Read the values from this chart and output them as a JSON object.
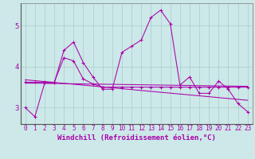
{
  "xlabel": "Windchill (Refroidissement éolien,°C)",
  "background_color": "#cce8e8",
  "grid_color": "#aacccc",
  "line_color": "#aa00aa",
  "xlim": [
    -0.5,
    23.5
  ],
  "ylim": [
    2.6,
    5.55
  ],
  "yticks": [
    3,
    4,
    5
  ],
  "xticks": [
    0,
    1,
    2,
    3,
    4,
    5,
    6,
    7,
    8,
    9,
    10,
    11,
    12,
    13,
    14,
    15,
    16,
    17,
    18,
    19,
    20,
    21,
    22,
    23
  ],
  "line1_x": [
    0,
    1,
    2,
    3,
    4,
    5,
    6,
    7,
    8,
    9,
    10,
    11,
    12,
    13,
    14,
    15,
    16,
    17,
    18,
    19,
    20,
    21,
    22,
    23
  ],
  "line1_y": [
    3.0,
    2.78,
    3.6,
    3.6,
    4.4,
    4.6,
    4.1,
    3.75,
    3.45,
    3.45,
    4.35,
    4.5,
    4.65,
    5.2,
    5.38,
    5.05,
    3.55,
    3.75,
    3.35,
    3.35,
    3.65,
    3.45,
    3.1,
    2.9
  ],
  "line2_x": [
    0,
    1,
    2,
    3,
    4,
    5,
    6,
    7,
    8,
    9,
    10,
    11,
    12,
    13,
    14,
    15,
    16,
    17,
    18,
    19,
    20,
    21,
    22,
    23
  ],
  "line2_y": [
    3.62,
    3.62,
    3.62,
    3.62,
    4.22,
    4.14,
    3.7,
    3.58,
    3.5,
    3.5,
    3.5,
    3.5,
    3.5,
    3.5,
    3.5,
    3.5,
    3.5,
    3.5,
    3.5,
    3.5,
    3.5,
    3.5,
    3.5,
    3.5
  ],
  "trend1_x": [
    0,
    23
  ],
  "trend1_y": [
    3.68,
    3.18
  ],
  "trend2_x": [
    0,
    23
  ],
  "trend2_y": [
    3.6,
    3.52
  ],
  "ticker_fontsize": 5.5,
  "xlabel_fontsize": 6.5
}
